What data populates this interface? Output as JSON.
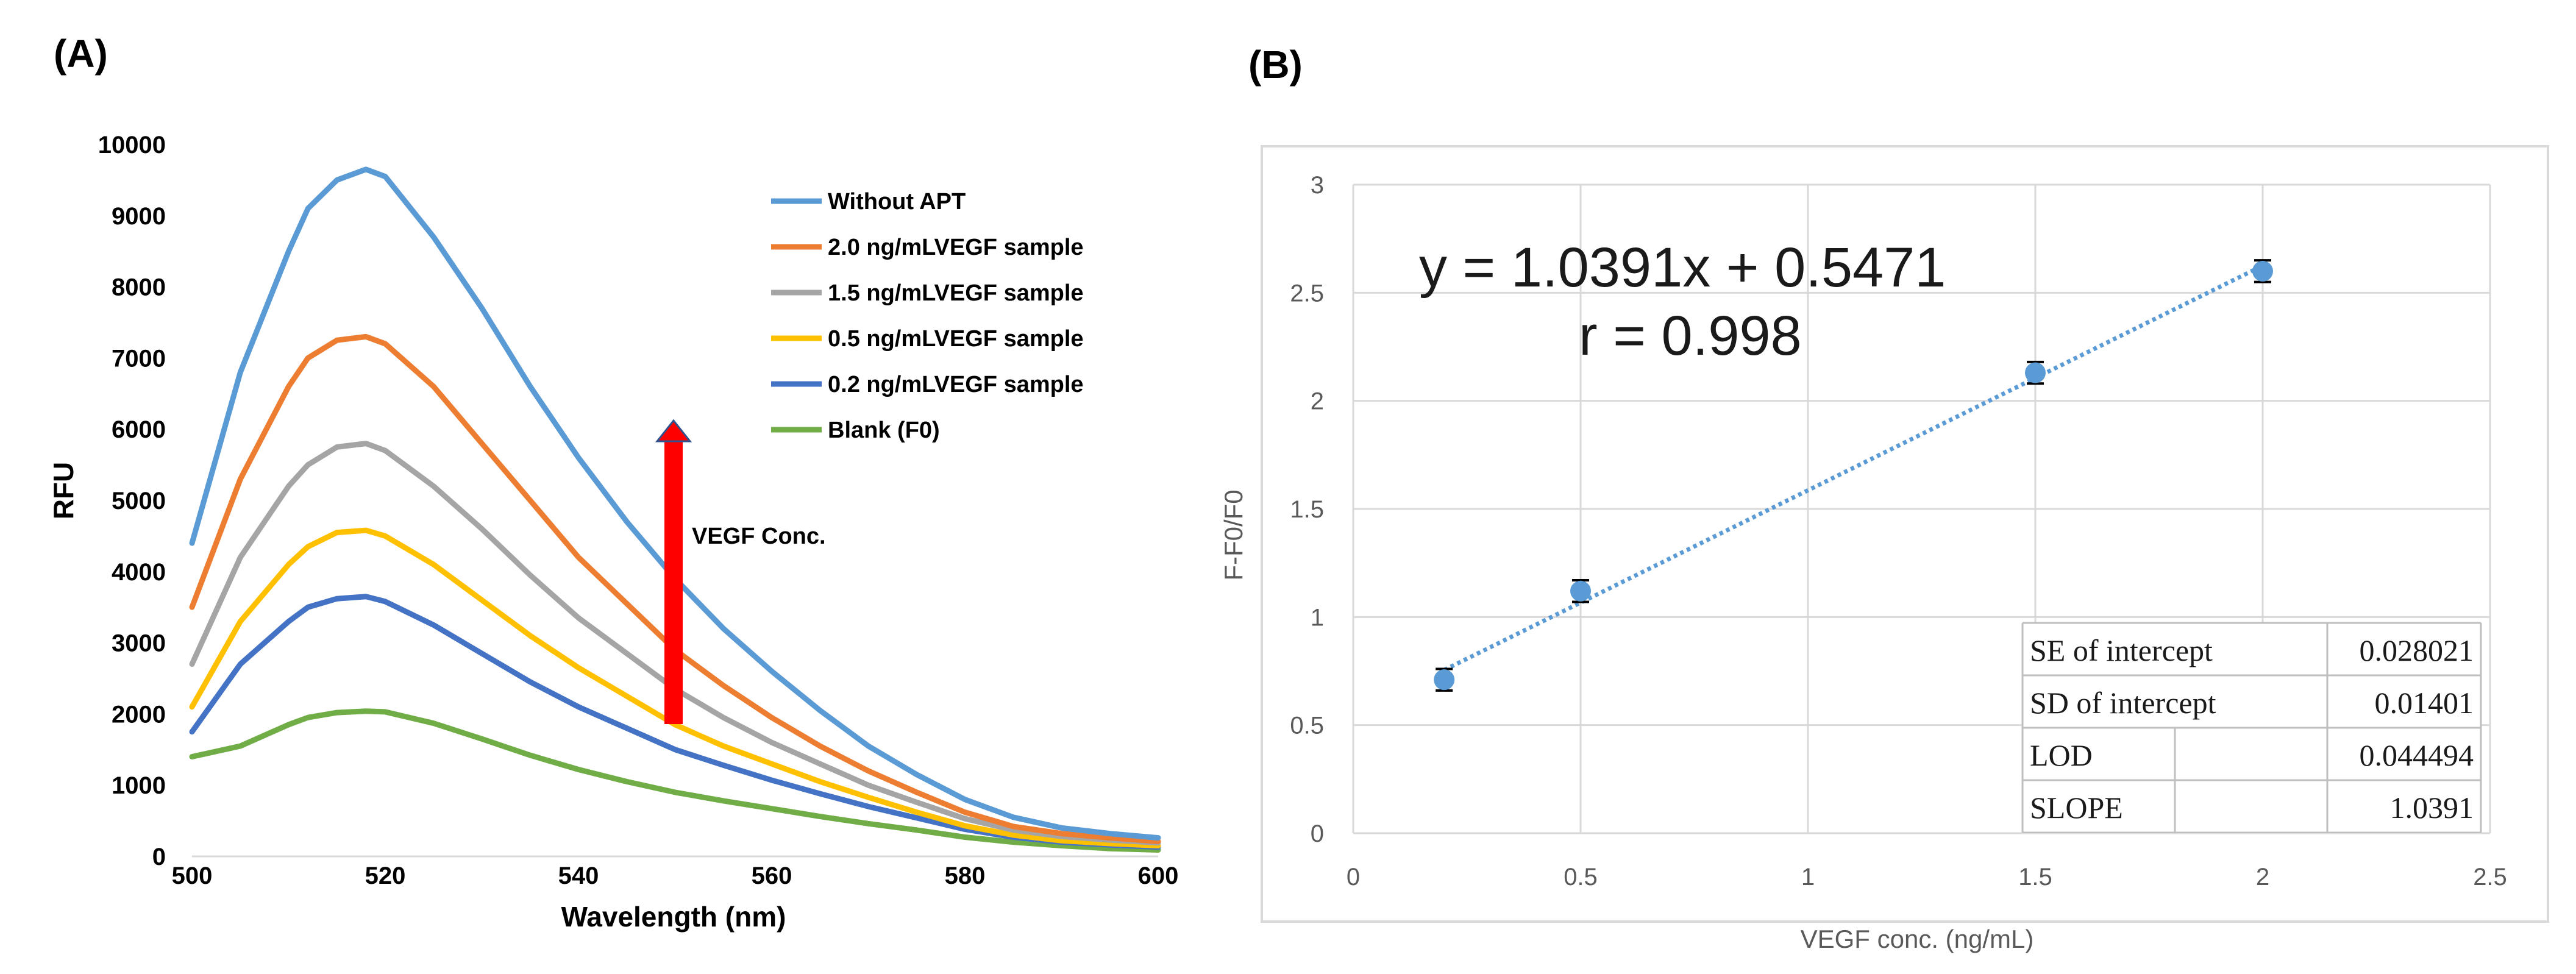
{
  "chart_data": [
    {
      "panel_label": "(A)",
      "type": "line",
      "xlabel": "Wavelength (nm)",
      "ylabel": "RFU",
      "xlim": [
        500,
        600
      ],
      "ylim": [
        0,
        10000
      ],
      "x_ticks": [
        "500",
        "520",
        "540",
        "560",
        "580",
        "600"
      ],
      "y_ticks": [
        "0",
        "1000",
        "2000",
        "3000",
        "4000",
        "5000",
        "6000",
        "7000",
        "8000",
        "9000",
        "10000"
      ],
      "x": [
        500,
        505,
        510,
        512,
        515,
        518,
        520,
        525,
        530,
        535,
        540,
        545,
        550,
        555,
        560,
        565,
        570,
        575,
        580,
        585,
        590,
        595,
        600
      ],
      "series": [
        {
          "name": "Without APT",
          "color": "#5B9BD5",
          "values": [
            4400,
            6800,
            8500,
            9100,
            9500,
            9650,
            9550,
            8700,
            7700,
            6600,
            5600,
            4700,
            3900,
            3200,
            2600,
            2050,
            1550,
            1150,
            800,
            550,
            400,
            320,
            260
          ]
        },
        {
          "name": "2.0 ng/mLVEGF sample",
          "color": "#ED7D31",
          "values": [
            3500,
            5300,
            6600,
            7000,
            7250,
            7300,
            7200,
            6600,
            5800,
            5000,
            4200,
            3550,
            2900,
            2400,
            1950,
            1550,
            1200,
            900,
            620,
            420,
            320,
            260,
            210
          ]
        },
        {
          "name": "1.5 ng/mLVEGF sample",
          "color": "#A5A5A5",
          "values": [
            2700,
            4200,
            5200,
            5500,
            5750,
            5800,
            5700,
            5200,
            4600,
            3950,
            3350,
            2850,
            2350,
            1950,
            1600,
            1300,
            1000,
            760,
            530,
            370,
            280,
            230,
            190
          ]
        },
        {
          "name": "0.5 ng/mLVEGF sample",
          "color": "#FFC000",
          "values": [
            2100,
            3300,
            4100,
            4350,
            4550,
            4580,
            4500,
            4100,
            3600,
            3100,
            2650,
            2250,
            1850,
            1550,
            1300,
            1050,
            830,
            620,
            430,
            300,
            220,
            180,
            150
          ]
        },
        {
          "name": "0.2 ng/mLVEGF sample",
          "color": "#4472C4",
          "values": [
            1750,
            2700,
            3300,
            3500,
            3620,
            3650,
            3580,
            3250,
            2850,
            2450,
            2100,
            1800,
            1500,
            1280,
            1070,
            880,
            700,
            540,
            380,
            270,
            200,
            160,
            130
          ]
        },
        {
          "name": "Blank (F0)",
          "color": "#70AD47",
          "values": [
            1400,
            1550,
            1850,
            1950,
            2020,
            2040,
            2030,
            1870,
            1650,
            1420,
            1220,
            1050,
            900,
            780,
            670,
            560,
            460,
            370,
            270,
            200,
            150,
            110,
            90
          ]
        }
      ],
      "annotation": "VEGF Conc."
    },
    {
      "panel_label": "(B)",
      "type": "scatter",
      "xlabel": "VEGF conc. (ng/mL)",
      "ylabel": "F-F0/F0",
      "xlim": [
        0,
        2.5
      ],
      "ylim": [
        0,
        3
      ],
      "x_ticks": [
        "0",
        "0.5",
        "1",
        "1.5",
        "2",
        "2.5"
      ],
      "y_ticks": [
        "0",
        "0.5",
        "1",
        "1.5",
        "2",
        "2.5",
        "3"
      ],
      "x": [
        0.2,
        0.5,
        1.5,
        2.0
      ],
      "y": [
        0.71,
        1.12,
        2.13,
        2.6
      ],
      "error": [
        0.05,
        0.05,
        0.05,
        0.05
      ],
      "point_color": "#5B9BD5",
      "trendline": {
        "slope": 1.0391,
        "intercept": 0.5471
      },
      "equation_label": "y = 1.0391x + 0.5471",
      "r_label": "r = 0.998",
      "stats_table": [
        [
          "SE of intercept",
          "0.028021"
        ],
        [
          "SD of intercept",
          "0.01401"
        ],
        [
          "LOD",
          "0.044494"
        ],
        [
          "SLOPE",
          "1.0391"
        ]
      ]
    }
  ]
}
